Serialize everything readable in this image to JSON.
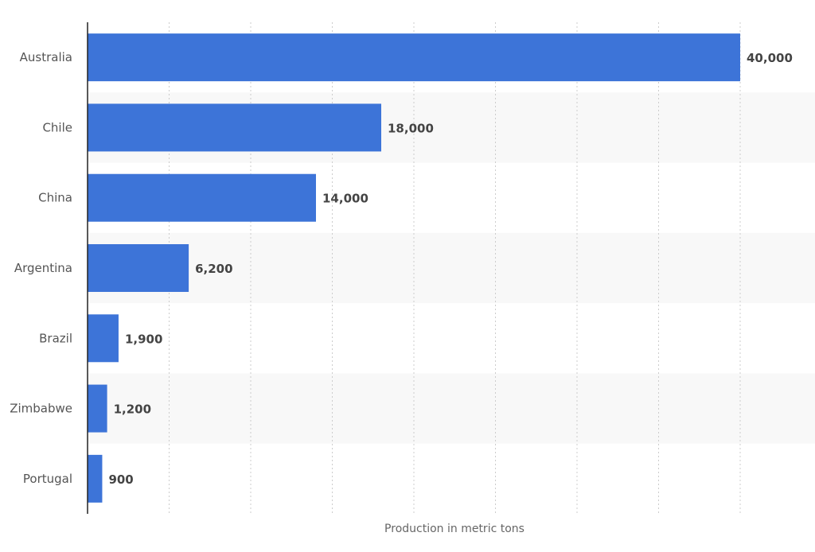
{
  "chart_data": {
    "type": "bar",
    "orientation": "horizontal",
    "title": "",
    "xlabel": "Production in metric tons",
    "ylabel": "",
    "categories": [
      "Australia",
      "Chile",
      "China",
      "Argentina",
      "Brazil",
      "Zimbabwe",
      "Portugal"
    ],
    "values": [
      40000,
      18000,
      14000,
      6200,
      1900,
      1200,
      900
    ],
    "value_labels": [
      "40,000",
      "18,000",
      "14,000",
      "6,200",
      "1,900",
      "1,200",
      "900"
    ],
    "xlim": [
      0,
      44000
    ],
    "x_grid_step": 5000,
    "grid": true,
    "grid_style": "dotted",
    "alternating_row_bands": true,
    "bar_color": "#3d74d8",
    "band_color": "#f8f8f8",
    "grid_color": "#cccccc",
    "axis_color": "#222222"
  }
}
